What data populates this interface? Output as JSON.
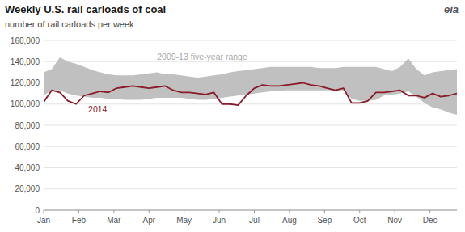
{
  "chart_data": {
    "type": "line",
    "title": "Weekly U.S. rail carloads of coal",
    "subtitle": "number of rail carloads  per week",
    "annotations": [
      {
        "text": "2009-13 five-year range",
        "x": 14,
        "y": 145000,
        "color": "#a8a8a8"
      },
      {
        "text": "2014",
        "x": 5.5,
        "y": 95500,
        "color": "#8b1a2a"
      },
      {
        "text": "eia",
        "color": "#555555"
      }
    ],
    "x": [
      0,
      1,
      2,
      3,
      4,
      5,
      6,
      7,
      8,
      9,
      10,
      11,
      12,
      13,
      14,
      15,
      16,
      17,
      18,
      19,
      20,
      21,
      22,
      23,
      24,
      25,
      26,
      27,
      28,
      29,
      30,
      31,
      32,
      33,
      34,
      35,
      36,
      37,
      38,
      39,
      40,
      41,
      42,
      43,
      44,
      45,
      46,
      47,
      48,
      49,
      50,
      51
    ],
    "series": [
      {
        "type": "area",
        "color": "#c0c0c0",
        "upper": [
          130000,
          133000,
          144000,
          140000,
          138000,
          135000,
          132000,
          130000,
          128000,
          127000,
          127000,
          127000,
          128000,
          129000,
          130000,
          128000,
          128000,
          127000,
          126000,
          125000,
          126000,
          127000,
          128000,
          130000,
          131000,
          132000,
          133000,
          134000,
          135000,
          135000,
          135000,
          135000,
          135000,
          135000,
          134000,
          134000,
          134000,
          135000,
          135000,
          135000,
          135000,
          135000,
          133000,
          131000,
          135000,
          143000,
          133000,
          127000,
          130000,
          131000,
          132000,
          133000
        ],
        "lower": [
          108000,
          113000,
          113000,
          110000,
          108000,
          107000,
          106000,
          106000,
          105000,
          105000,
          104000,
          104000,
          104000,
          105000,
          106000,
          106000,
          106000,
          106000,
          105000,
          104000,
          104000,
          105000,
          106000,
          107000,
          108000,
          109000,
          110000,
          111000,
          112000,
          112000,
          113000,
          113000,
          113000,
          113000,
          113000,
          113000,
          113000,
          113000,
          105000,
          103000,
          103000,
          104000,
          108000,
          109000,
          110000,
          112000,
          107000,
          101000,
          97000,
          95000,
          92000,
          90000
        ]
      },
      {
        "type": "line",
        "color": "#8b1a2a",
        "values": [
          102000,
          113000,
          111000,
          103000,
          100000,
          108000,
          110000,
          112000,
          111000,
          115000,
          116000,
          117000,
          116000,
          115000,
          116000,
          117000,
          113000,
          111000,
          111000,
          110000,
          109000,
          111000,
          100000,
          100000,
          99000,
          108000,
          115000,
          118000,
          117000,
          117000,
          118000,
          119000,
          120000,
          118000,
          117000,
          115000,
          113000,
          115000,
          101000,
          101000,
          103000,
          111000,
          111000,
          112000,
          113000,
          108000,
          108000,
          106000,
          110000,
          107000,
          108000,
          110000
        ]
      }
    ],
    "xlim": [
      0,
      51
    ],
    "xticks": [
      {
        "value": 0,
        "label": "Jan"
      },
      {
        "value": 4.333333333333333,
        "label": "Feb"
      },
      {
        "value": 8.666666666666666,
        "label": "Mar"
      },
      {
        "value": 13,
        "label": "Apr"
      },
      {
        "value": 17.333333333333332,
        "label": "May"
      },
      {
        "value": 21.666666666666664,
        "label": "Jun"
      },
      {
        "value": 26,
        "label": "Jul"
      },
      {
        "value": 30.333333333333332,
        "label": "Aug"
      },
      {
        "value": 34.666666666666664,
        "label": "Sep"
      },
      {
        "value": 39,
        "label": "Oct"
      },
      {
        "value": 43.33333333333333,
        "label": "Nov"
      },
      {
        "value": 47.666666666666664,
        "label": "Dec"
      }
    ],
    "ylim": [
      0,
      160000
    ],
    "yticks": [
      0,
      {
        "value": 20000,
        "label": "20,000"
      },
      {
        "value": 40000,
        "label": "40,000"
      },
      {
        "value": 60000,
        "label": "60,000"
      },
      {
        "value": 80000,
        "label": "80,000"
      },
      {
        "value": 100000,
        "label": "100,000"
      },
      {
        "value": 120000,
        "label": "120,000"
      },
      {
        "value": 140000,
        "label": "140,000"
      },
      {
        "value": 160000,
        "label": "160,000"
      }
    ],
    "grid": true
  }
}
